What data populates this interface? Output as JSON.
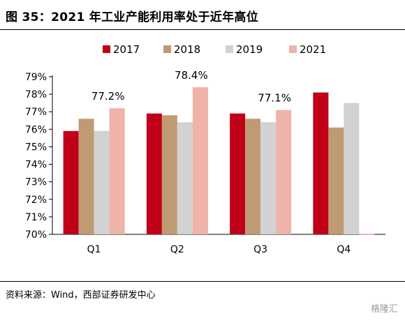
{
  "title": "图 35：2021 年工业产能利用率处于近年高位",
  "source": "资料来源：Wind，西部证券研发中心",
  "watermark": "格隆汇",
  "colors": {
    "2017": "#c00018",
    "2018": "#bf9b74",
    "2019": "#d2d2d2",
    "2021": "#efb3aa"
  },
  "chart_data": {
    "type": "bar",
    "categories": [
      "Q1",
      "Q2",
      "Q3",
      "Q4"
    ],
    "series": [
      {
        "name": "2017",
        "values": [
          75.9,
          76.9,
          76.9,
          78.1
        ]
      },
      {
        "name": "2018",
        "values": [
          76.6,
          76.8,
          76.6,
          76.1
        ]
      },
      {
        "name": "2019",
        "values": [
          75.9,
          76.4,
          76.4,
          77.5
        ]
      },
      {
        "name": "2021",
        "values": [
          77.2,
          78.4,
          77.1,
          null
        ]
      }
    ],
    "data_labels": [
      {
        "series": "2021",
        "category": "Q1",
        "text": "77.2%"
      },
      {
        "series": "2021",
        "category": "Q2",
        "text": "78.4%"
      },
      {
        "series": "2021",
        "category": "Q3",
        "text": "77.1%"
      }
    ],
    "y_ticks": [
      "70%",
      "71%",
      "72%",
      "73%",
      "74%",
      "75%",
      "76%",
      "77%",
      "78%",
      "79%"
    ],
    "ylim": [
      70,
      79
    ],
    "legend_position": "top",
    "grid": false
  }
}
